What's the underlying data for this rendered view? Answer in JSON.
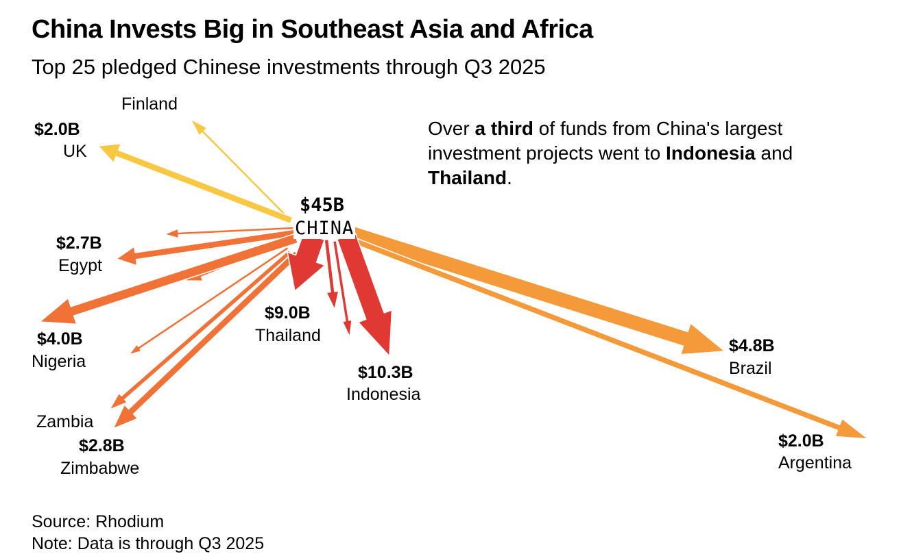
{
  "title": "China Invests Big in Southeast Asia and Africa",
  "subtitle": "Top 25 pledged Chinese investments through Q3 2025",
  "annotation": {
    "part1": "Over ",
    "bold1": "a third",
    "part2": " of funds from China's largest investment projects went to ",
    "bold2": "Indonesia",
    "part3": " and ",
    "bold3": "Thailand",
    "part4": "."
  },
  "origin": {
    "total": "$45B",
    "name": "CHINA"
  },
  "labels": {
    "finland": {
      "name": "Finland"
    },
    "uk": {
      "value": "$2.0B",
      "name": "UK"
    },
    "egypt": {
      "value": "$2.7B",
      "name": "Egypt"
    },
    "nigeria": {
      "value": "$4.0B",
      "name": "Nigeria"
    },
    "zambia": {
      "name": "Zambia"
    },
    "zimbabwe": {
      "value": "$2.8B",
      "name": "Zimbabwe"
    },
    "thailand": {
      "value": "$9.0B",
      "name": "Thailand"
    },
    "indonesia": {
      "value": "$10.3B",
      "name": "Indonesia"
    },
    "brazil": {
      "value": "$4.8B",
      "name": "Brazil"
    },
    "argentina": {
      "value": "$2.0B",
      "name": "Argentina"
    }
  },
  "source": "Source: Rhodium",
  "note": "Note: Data is through Q3 2025",
  "colors": {
    "europe": "#f7c843",
    "africa": "#f07236",
    "asia": "#e03833",
    "americas": "#f59a3a"
  },
  "chart_data": {
    "type": "flow",
    "origin": "CHINA",
    "total": 45,
    "unit": "$B",
    "flows": [
      {
        "destination": "Indonesia",
        "value": 10.3,
        "region": "asia"
      },
      {
        "destination": "Thailand",
        "value": 9.0,
        "region": "asia"
      },
      {
        "destination": "Brazil",
        "value": 4.8,
        "region": "americas"
      },
      {
        "destination": "Nigeria",
        "value": 4.0,
        "region": "africa"
      },
      {
        "destination": "Zimbabwe",
        "value": 2.8,
        "region": "africa"
      },
      {
        "destination": "Egypt",
        "value": 2.7,
        "region": "africa"
      },
      {
        "destination": "UK",
        "value": 2.0,
        "region": "europe"
      },
      {
        "destination": "Argentina",
        "value": 2.0,
        "region": "americas"
      },
      {
        "destination": "Finland",
        "value": null,
        "region": "europe"
      },
      {
        "destination": "Zambia",
        "value": null,
        "region": "africa"
      }
    ]
  }
}
